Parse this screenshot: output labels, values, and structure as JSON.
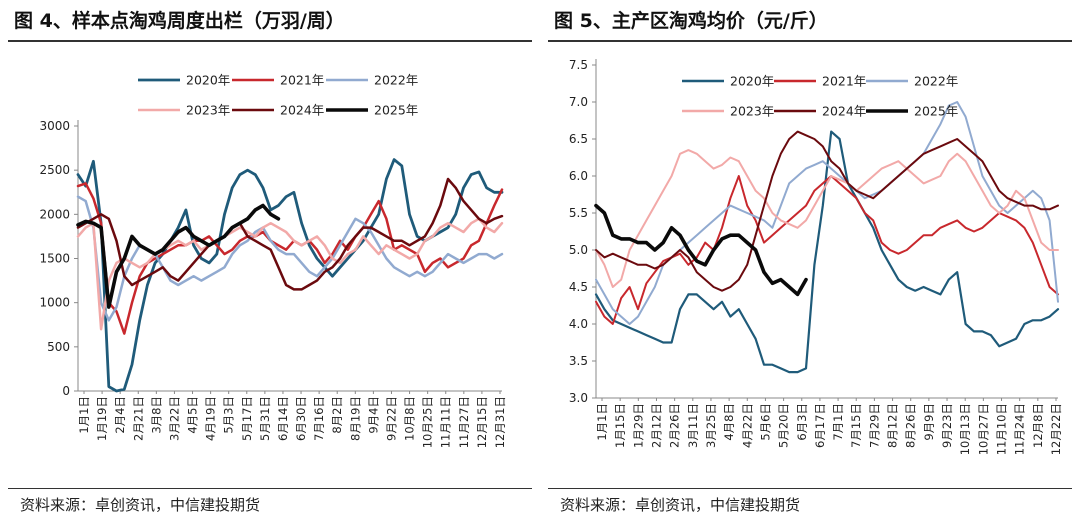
{
  "panels": [
    {
      "title": "图 4、样本点淘鸡周度出栏（万羽/周）",
      "source": "资料来源：卓创资讯，中信建投期货",
      "chart_data": {
        "type": "line",
        "title": "图 4、样本点淘鸡周度出栏（万羽/周）",
        "xlabel": "",
        "ylabel": "",
        "ylim": [
          0,
          3000
        ],
        "yticks": [
          0,
          500,
          1000,
          1500,
          2000,
          2500,
          3000
        ],
        "x_tick_labels": [
          "1月1日",
          "1月19日",
          "2月4日",
          "2月21日",
          "3月8日",
          "3月22日",
          "4月5日",
          "4月19日",
          "5月3日",
          "5月17日",
          "5月31日",
          "6月14日",
          "6月30日",
          "7月16日",
          "8月2日",
          "8月19日",
          "9月4日",
          "9月22日",
          "10月8日",
          "10月25日",
          "11月11日",
          "11月27日",
          "12月15日",
          "12月31日"
        ],
        "grid": false,
        "legend": "top",
        "series": [
          {
            "name": "2020年",
            "color": "#1f5b7a",
            "width": 2.8,
            "values": [
              2450,
              2320,
              2600,
              1900,
              50,
              0,
              20,
              300,
              800,
              1200,
              1450,
              1550,
              1700,
              1850,
              2050,
              1650,
              1500,
              1450,
              1550,
              2000,
              2300,
              2450,
              2500,
              2450,
              2300,
              2050,
              2100,
              2200,
              2250,
              1900,
              1650,
              1500,
              1400,
              1300,
              1400,
              1500,
              1600,
              1700,
              1850,
              2000,
              2400,
              2620,
              2550,
              2000,
              1750,
              1700,
              1750,
              1800,
              1850,
              2000,
              2300,
              2450,
              2480,
              2300,
              2250,
              2250
            ]
          },
          {
            "name": "2021年",
            "color": "#c8282d",
            "width": 2.5,
            "values": [
              2320,
              2350,
              2180,
              1900,
              1000,
              900,
              650,
              1000,
              1300,
              1450,
              1500,
              1550,
              1600,
              1650,
              1650,
              1700,
              1700,
              1750,
              1650,
              1550,
              1600,
              1700,
              1750,
              1750,
              1800,
              1700,
              1650,
              1600,
              1700,
              1650,
              1700,
              1600,
              1450,
              1550,
              1700,
              1600,
              1750,
              1850,
              2000,
              2150,
              1950,
              1600,
              1650,
              1600,
              1550,
              1350,
              1450,
              1500,
              1400,
              1450,
              1500,
              1650,
              1700,
              1900,
              2100,
              2280
            ]
          },
          {
            "name": "2022年",
            "color": "#91aad0",
            "width": 2.5,
            "values": [
              2200,
              2150,
              1850,
              1000,
              800,
              950,
              1300,
              1500,
              1650,
              1600,
              1550,
              1400,
              1250,
              1200,
              1250,
              1300,
              1250,
              1300,
              1350,
              1400,
              1550,
              1650,
              1700,
              1800,
              1850,
              1700,
              1600,
              1550,
              1550,
              1450,
              1350,
              1300,
              1400,
              1500,
              1650,
              1800,
              1950,
              1900,
              1800,
              1650,
              1500,
              1400,
              1350,
              1300,
              1350,
              1300,
              1350,
              1450,
              1550,
              1500,
              1450,
              1500,
              1550,
              1550,
              1500,
              1550
            ]
          },
          {
            "name": "2023年",
            "color": "#f2a9a8",
            "width": 2.5,
            "values": [
              1750,
              1850,
              1900,
              700,
              1250,
              1450,
              1500,
              1450,
              1400,
              1450,
              1550,
              1600,
              1650,
              1700,
              1650,
              1700,
              1600,
              1650,
              1700,
              1750,
              1800,
              1850,
              1800,
              1750,
              1850,
              1900,
              1850,
              1800,
              1700,
              1650,
              1700,
              1750,
              1650,
              1500,
              1450,
              1550,
              1600,
              1750,
              1650,
              1550,
              1650,
              1600,
              1550,
              1500,
              1550,
              1700,
              1750,
              1850,
              1900,
              1850,
              1800,
              1900,
              1950,
              1850,
              1800,
              1900
            ]
          },
          {
            "name": "2024年",
            "color": "#6b0a0e",
            "width": 2.5,
            "values": [
              1850,
              1900,
              1950,
              2000,
              1950,
              1700,
              1300,
              1200,
              1250,
              1300,
              1350,
              1400,
              1300,
              1250,
              1350,
              1450,
              1550,
              1650,
              1700,
              1750,
              1850,
              1900,
              1750,
              1700,
              1650,
              1600,
              1400,
              1200,
              1150,
              1150,
              1200,
              1250,
              1350,
              1400,
              1500,
              1650,
              1750,
              1850,
              1850,
              1800,
              1750,
              1700,
              1700,
              1650,
              1700,
              1750,
              1900,
              2100,
              2400,
              2300,
              2150,
              2050,
              1950,
              1900,
              1950,
              1980
            ]
          },
          {
            "name": "2025年",
            "color": "#0a0a0a",
            "width": 3.6,
            "values": [
              1880,
              1920,
              1900,
              1850,
              950,
              1350,
              1500,
              1750,
              1650,
              1600,
              1550,
              1600,
              1700,
              1800,
              1850,
              1750,
              1700,
              1650,
              1700,
              1750,
              1850,
              1900,
              1950,
              2050,
              2100,
              2000,
              1950
            ]
          }
        ]
      }
    },
    {
      "title": "图 5、主产区淘鸡均价（元/斤）",
      "source": "资料来源：卓创资讯，中信建投期货",
      "chart_data": {
        "type": "line",
        "title": "图 5、主产区淘鸡均价（元/斤）",
        "xlabel": "",
        "ylabel": "",
        "ylim": [
          3.0,
          7.5
        ],
        "yticks": [
          3.0,
          3.5,
          4.0,
          4.5,
          5.0,
          5.5,
          6.0,
          6.5,
          7.0,
          7.5
        ],
        "x_tick_labels": [
          "1月1日",
          "1月15日",
          "1月29日",
          "2月12日",
          "2月26日",
          "3月11日",
          "3月25日",
          "4月8日",
          "4月22日",
          "5月6日",
          "5月20日",
          "6月3日",
          "6月17日",
          "7月1日",
          "7月15日",
          "7月29日",
          "8月12日",
          "8月26日",
          "9月9日",
          "9月23日",
          "10月13日",
          "10月27日",
          "11月10日",
          "11月24日",
          "12月8日",
          "12月22日"
        ],
        "grid": false,
        "legend": "top",
        "series": [
          {
            "name": "2020年",
            "color": "#1f5b7a",
            "width": 2.2,
            "values": [
              4.4,
              4.2,
              4.05,
              4.0,
              3.95,
              3.9,
              3.85,
              3.8,
              3.75,
              3.75,
              4.2,
              4.4,
              4.4,
              4.3,
              4.2,
              4.3,
              4.1,
              4.2,
              4.0,
              3.8,
              3.45,
              3.45,
              3.4,
              3.35,
              3.35,
              3.4,
              4.8,
              5.6,
              6.6,
              6.5,
              5.9,
              5.7,
              5.5,
              5.3,
              5.0,
              4.8,
              4.6,
              4.5,
              4.45,
              4.5,
              4.45,
              4.4,
              4.6,
              4.7,
              4.0,
              3.9,
              3.9,
              3.85,
              3.7,
              3.75,
              3.8,
              4.0,
              4.05,
              4.05,
              4.1,
              4.2
            ]
          },
          {
            "name": "2021年",
            "color": "#c8282d",
            "width": 2.0,
            "values": [
              4.3,
              4.1,
              4.0,
              4.35,
              4.5,
              4.2,
              4.55,
              4.7,
              4.85,
              4.9,
              4.95,
              4.8,
              4.9,
              5.1,
              5.0,
              5.3,
              5.7,
              6.0,
              5.6,
              5.4,
              5.1,
              5.2,
              5.3,
              5.4,
              5.5,
              5.6,
              5.8,
              5.9,
              6.0,
              5.9,
              5.8,
              5.7,
              5.5,
              5.4,
              5.1,
              5.0,
              4.95,
              5.0,
              5.1,
              5.2,
              5.2,
              5.3,
              5.35,
              5.4,
              5.3,
              5.25,
              5.3,
              5.4,
              5.5,
              5.45,
              5.4,
              5.3,
              5.1,
              4.8,
              4.5,
              4.4
            ]
          },
          {
            "name": "2022年",
            "color": "#91aad0",
            "width": 2.0,
            "values": [
              4.6,
              4.4,
              4.2,
              4.1,
              4.0,
              4.1,
              4.3,
              4.5,
              4.8,
              4.9,
              5.0,
              5.1,
              5.2,
              5.3,
              5.4,
              5.5,
              5.6,
              5.55,
              5.5,
              5.45,
              5.4,
              5.3,
              5.6,
              5.9,
              6.0,
              6.1,
              6.15,
              6.2,
              6.1,
              6.0,
              5.9,
              5.8,
              5.7,
              5.75,
              5.8,
              5.9,
              6.0,
              6.1,
              6.2,
              6.3,
              6.5,
              6.7,
              6.95,
              7.0,
              6.8,
              6.4,
              6.0,
              5.8,
              5.6,
              5.5,
              5.6,
              5.7,
              5.8,
              5.7,
              5.4,
              4.3
            ]
          },
          {
            "name": "2023年",
            "color": "#f2a9a8",
            "width": 2.0,
            "values": [
              5.0,
              4.8,
              4.5,
              4.6,
              5.0,
              5.2,
              5.4,
              5.6,
              5.8,
              6.0,
              6.3,
              6.35,
              6.3,
              6.2,
              6.1,
              6.15,
              6.25,
              6.2,
              6.0,
              5.8,
              5.7,
              5.5,
              5.4,
              5.35,
              5.3,
              5.4,
              5.6,
              5.8,
              6.0,
              5.95,
              5.9,
              5.8,
              5.9,
              6.0,
              6.1,
              6.15,
              6.2,
              6.1,
              6.0,
              5.9,
              5.95,
              6.0,
              6.2,
              6.3,
              6.2,
              6.0,
              5.8,
              5.6,
              5.5,
              5.6,
              5.8,
              5.7,
              5.4,
              5.1,
              5.0,
              5.0
            ]
          },
          {
            "name": "2024年",
            "color": "#6b0a0e",
            "width": 2.0,
            "values": [
              5.0,
              4.9,
              4.95,
              4.9,
              4.85,
              4.8,
              4.8,
              4.75,
              4.8,
              4.9,
              5.0,
              4.9,
              4.7,
              4.6,
              4.5,
              4.45,
              4.5,
              4.6,
              4.8,
              5.2,
              5.6,
              6.0,
              6.3,
              6.5,
              6.6,
              6.55,
              6.5,
              6.4,
              6.2,
              6.1,
              5.9,
              5.8,
              5.75,
              5.7,
              5.8,
              5.9,
              6.0,
              6.1,
              6.2,
              6.3,
              6.35,
              6.4,
              6.45,
              6.5,
              6.4,
              6.3,
              6.2,
              6.0,
              5.8,
              5.7,
              5.65,
              5.6,
              5.6,
              5.55,
              5.55,
              5.6
            ]
          },
          {
            "name": "2025年",
            "color": "#0a0a0a",
            "width": 3.6,
            "values": [
              5.6,
              5.5,
              5.2,
              5.15,
              5.15,
              5.1,
              5.1,
              5.0,
              5.1,
              5.3,
              5.2,
              5.0,
              4.85,
              4.8,
              5.0,
              5.15,
              5.2,
              5.2,
              5.1,
              5.0,
              4.7,
              4.55,
              4.6,
              4.5,
              4.4,
              4.6
            ]
          }
        ]
      }
    }
  ]
}
